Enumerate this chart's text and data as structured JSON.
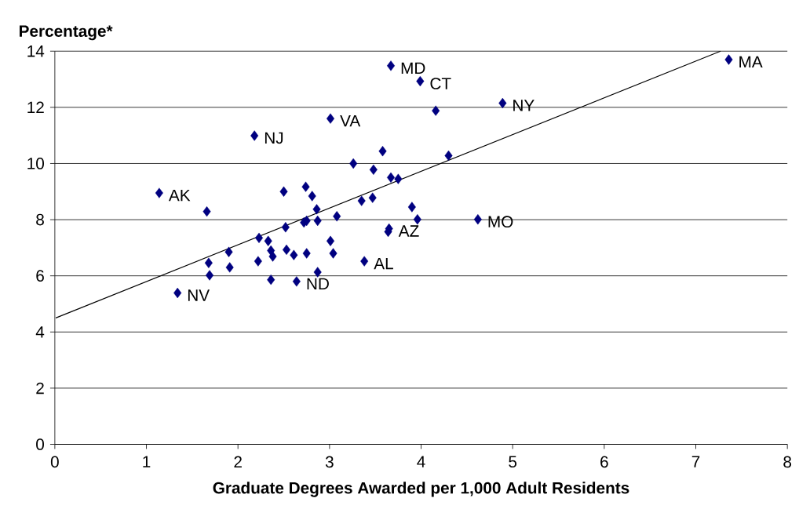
{
  "chart_data": {
    "type": "scatter",
    "ylabel": "Percentage*",
    "xlabel": "Graduate Degrees Awarded per 1,000 Adult Residents",
    "xlim": [
      0,
      8
    ],
    "xticks": [
      0,
      1,
      2,
      3,
      4,
      5,
      6,
      7,
      8
    ],
    "ylim": [
      0,
      14
    ],
    "yticks": [
      0,
      2,
      4,
      6,
      8,
      10,
      12,
      14
    ],
    "grid": "y",
    "marker": "diamond",
    "series": [
      {
        "color": "#000080",
        "x": [
          7.36,
          3.67,
          3.99,
          4.89,
          4.16,
          3.01,
          2.18,
          3.58,
          4.3,
          3.26,
          3.48,
          3.67,
          3.75,
          1.14,
          2.5,
          2.74,
          2.81,
          1.66,
          2.86,
          3.35,
          3.47,
          3.08,
          3.9,
          3.96,
          4.62,
          2.52,
          2.72,
          2.75,
          2.87,
          3.65,
          3.64,
          2.23,
          2.33,
          3.01,
          1.68,
          1.9,
          2.36,
          2.38,
          2.53,
          2.61,
          2.75,
          3.04,
          2.22,
          1.91,
          3.38,
          1.69,
          2.87,
          2.36,
          2.64,
          1.34
        ],
        "values": [
          13.7,
          13.48,
          12.93,
          12.15,
          11.88,
          11.6,
          10.99,
          10.44,
          10.28,
          10.0,
          9.78,
          9.5,
          9.45,
          8.95,
          9.0,
          9.17,
          8.84,
          8.29,
          8.37,
          8.67,
          8.78,
          8.12,
          8.45,
          8.01,
          8.01,
          7.73,
          7.9,
          7.96,
          7.96,
          7.68,
          7.57,
          7.35,
          7.24,
          7.24,
          6.46,
          6.85,
          6.9,
          6.69,
          6.93,
          6.74,
          6.8,
          6.8,
          6.52,
          6.3,
          6.52,
          6.02,
          6.13,
          5.86,
          5.8,
          5.39
        ]
      },
      {
        "type": "line",
        "color": "#000000",
        "marker": "none",
        "x": [
          0.01,
          7.27
        ],
        "values": [
          4.5,
          14.0
        ]
      }
    ],
    "annotations": [
      {
        "text": "MA",
        "x": 7.36,
        "y": 13.7
      },
      {
        "text": "MD",
        "x": 3.67,
        "y": 13.48
      },
      {
        "text": "CT",
        "x": 3.99,
        "y": 12.93
      },
      {
        "text": "NY",
        "x": 4.89,
        "y": 12.15
      },
      {
        "text": "VA",
        "x": 3.01,
        "y": 11.6
      },
      {
        "text": "NJ",
        "x": 2.18,
        "y": 10.99
      },
      {
        "text": "AK",
        "x": 1.14,
        "y": 8.95
      },
      {
        "text": "MO",
        "x": 4.62,
        "y": 8.01
      },
      {
        "text": "AZ",
        "x": 3.65,
        "y": 7.68
      },
      {
        "text": "AL",
        "x": 3.38,
        "y": 6.52
      },
      {
        "text": "ND",
        "x": 2.64,
        "y": 5.8
      },
      {
        "text": "NV",
        "x": 1.34,
        "y": 5.39
      }
    ]
  }
}
